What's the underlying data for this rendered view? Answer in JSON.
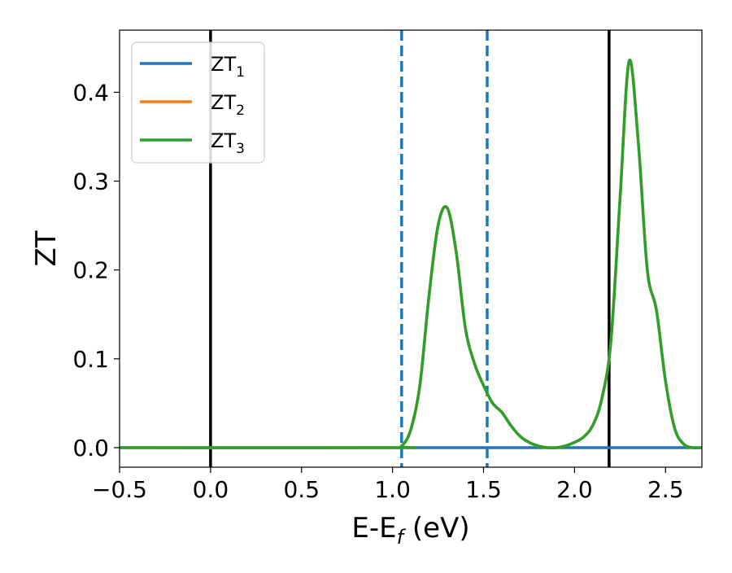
{
  "chart_data": {
    "type": "line",
    "title": "",
    "xlabel": "E-E",
    "xlabel_sub": "f",
    "xlabel_unit": " (eV)",
    "ylabel": "ZT",
    "xlim": [
      -0.5,
      2.7
    ],
    "ylim": [
      -0.022,
      0.47
    ],
    "xticks": [
      -0.5,
      0.0,
      0.5,
      1.0,
      1.5,
      2.0,
      2.5
    ],
    "xtick_labels": [
      "−0.5",
      "0.0",
      "0.5",
      "1.0",
      "1.5",
      "2.0",
      "2.5"
    ],
    "yticks": [
      0.0,
      0.1,
      0.2,
      0.3,
      0.4
    ],
    "ytick_labels": [
      "0.0",
      "0.1",
      "0.2",
      "0.3",
      "0.4"
    ],
    "grid": false,
    "legend_position": "top-left",
    "legend": [
      {
        "label": "ZT",
        "sub": "1",
        "color": "#1f77b4"
      },
      {
        "label": "ZT",
        "sub": "2",
        "color": "#ff7f0e"
      },
      {
        "label": "ZT",
        "sub": "3",
        "color": "#2ca02c"
      }
    ],
    "vertical_lines": [
      {
        "x": 0.0,
        "color": "#000000",
        "style": "solid"
      },
      {
        "x": 2.19,
        "color": "#000000",
        "style": "solid"
      },
      {
        "x": 1.05,
        "color": "#1f77b4",
        "style": "dashed"
      },
      {
        "x": 1.52,
        "color": "#1f77b4",
        "style": "dashed"
      }
    ],
    "series": [
      {
        "label": "ZT1",
        "color": "#1f77b4",
        "x": [
          -0.5,
          1.04,
          1.08,
          2.7
        ],
        "y": [
          0.0,
          0.0,
          0.0,
          0.0
        ]
      },
      {
        "label": "ZT2",
        "color": "#ff7f0e",
        "x": [
          -0.5,
          1.0,
          1.05,
          1.1,
          1.15,
          1.2,
          1.25,
          1.3,
          1.35,
          1.4,
          1.45,
          1.5,
          1.55,
          1.6,
          1.65,
          1.7,
          1.75,
          1.8,
          1.85,
          1.9,
          1.95,
          2.0,
          2.05,
          2.1,
          2.15,
          2.2,
          2.25,
          2.3,
          2.35,
          2.4,
          2.45,
          2.5,
          2.55,
          2.6,
          2.65,
          2.7
        ],
        "y": [
          0.0,
          0.0,
          0.002,
          0.02,
          0.07,
          0.17,
          0.25,
          0.27,
          0.22,
          0.135,
          0.095,
          0.07,
          0.05,
          0.04,
          0.025,
          0.013,
          0.006,
          0.002,
          0.0,
          0.0,
          0.002,
          0.006,
          0.012,
          0.025,
          0.055,
          0.12,
          0.28,
          0.435,
          0.345,
          0.2,
          0.155,
          0.075,
          0.022,
          0.004,
          0.0,
          0.0
        ]
      },
      {
        "label": "ZT3",
        "color": "#2ca02c",
        "x": [
          -0.5,
          1.0,
          1.05,
          1.1,
          1.15,
          1.2,
          1.25,
          1.3,
          1.35,
          1.4,
          1.45,
          1.5,
          1.55,
          1.6,
          1.65,
          1.7,
          1.75,
          1.8,
          1.85,
          1.9,
          1.95,
          2.0,
          2.05,
          2.1,
          2.15,
          2.2,
          2.25,
          2.3,
          2.35,
          2.4,
          2.45,
          2.5,
          2.55,
          2.6,
          2.65,
          2.7
        ],
        "y": [
          0.0,
          0.0,
          0.002,
          0.02,
          0.07,
          0.17,
          0.25,
          0.27,
          0.22,
          0.135,
          0.095,
          0.07,
          0.05,
          0.04,
          0.025,
          0.013,
          0.006,
          0.002,
          0.0,
          0.0,
          0.002,
          0.006,
          0.012,
          0.025,
          0.055,
          0.12,
          0.28,
          0.435,
          0.345,
          0.2,
          0.155,
          0.075,
          0.022,
          0.004,
          0.0,
          0.0
        ]
      }
    ]
  }
}
